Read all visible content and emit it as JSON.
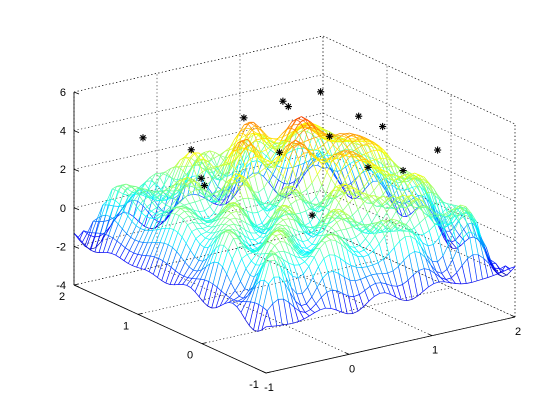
{
  "chart_data": {
    "type": "surface",
    "title": "",
    "xlabel": "",
    "ylabel": "",
    "zlabel": "",
    "xlim": [
      -1,
      2
    ],
    "ylim": [
      -1,
      2
    ],
    "zlim": [
      -4,
      6
    ],
    "x_ticks": [
      "-1",
      "0",
      "1",
      "2"
    ],
    "y_ticks": [
      "-1",
      "0",
      "1",
      "2"
    ],
    "z_ticks": [
      "-4",
      "-2",
      "0",
      "2",
      "4",
      "6"
    ],
    "x_tick_values": [
      -1,
      0,
      1,
      2
    ],
    "y_tick_values": [
      -1,
      0,
      1,
      2
    ],
    "z_tick_values": [
      -4,
      -2,
      0,
      2,
      4,
      6
    ],
    "grid": true,
    "colormap": "jet",
    "marker_symbol": "asterisk",
    "marker_color": "#000000",
    "maxima_markers": [
      {
        "x": 1.2,
        "y": 1.0,
        "z": 5.4
      },
      {
        "x": 0.85,
        "y": 1.05,
        "z": 4.9
      },
      {
        "x": 0.9,
        "y": 1.2,
        "z": 4.9
      },
      {
        "x": 1.35,
        "y": 0.6,
        "z": 4.6
      },
      {
        "x": 1.0,
        "y": 0.6,
        "z": 3.9
      },
      {
        "x": 1.6,
        "y": 0.55,
        "z": 3.9
      },
      {
        "x": 0.7,
        "y": 1.55,
        "z": 3.7
      },
      {
        "x": 1.8,
        "y": -0.05,
        "z": 3.4
      },
      {
        "x": -0.4,
        "y": 1.7,
        "z": 3.5
      },
      {
        "x": -0.05,
        "y": 1.4,
        "z": 3.0
      },
      {
        "x": -0.2,
        "y": 1.05,
        "z": 2.2
      },
      {
        "x": -0.2,
        "y": 1.0,
        "z": 1.9
      },
      {
        "x": 1.0,
        "y": 0.0,
        "z": 3.2
      },
      {
        "x": 0.55,
        "y": 0.8,
        "z": 3.2
      },
      {
        "x": 1.5,
        "y": 0.1,
        "z": 2.4
      },
      {
        "x": 0.25,
        "y": -0.1,
        "z": 1.6
      }
    ]
  }
}
